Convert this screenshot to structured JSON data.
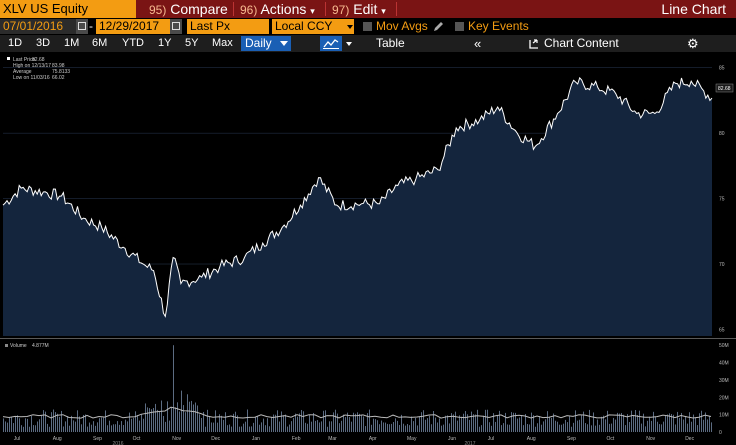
{
  "toolbar": {
    "ticker": "XLV US Equity",
    "compare_num": "95)",
    "compare_label": "Compare",
    "actions_num": "96)",
    "actions_label": "Actions",
    "edit_num": "97)",
    "edit_label": "Edit",
    "chart_title": "Line Chart"
  },
  "settings": {
    "start_date": "07/01/2016",
    "end_date": "12/29/2017",
    "field": "Last Px",
    "currency": "Local CCY",
    "mov_avgs": "Mov Avgs",
    "key_events": "Key Events"
  },
  "ranges": {
    "items": [
      "1D",
      "3D",
      "1M",
      "6M",
      "YTD",
      "1Y",
      "5Y",
      "Max"
    ],
    "frequency": "Daily",
    "table": "Table",
    "chart_content": "Chart Content"
  },
  "legend": {
    "last_price": "Last Price",
    "last_price_val": "82.68",
    "high": "High on 12/13/17",
    "high_val": "83.98",
    "average": "Average",
    "average_val": "75.8133",
    "low": "Low on 11/03/16",
    "low_val": "66.02",
    "volume": "Volume",
    "volume_val": "4.877M",
    "price_tag": "82.68"
  },
  "chart_data": {
    "type": "line",
    "price": {
      "y_ticks": [
        "85",
        "80",
        "75",
        "70",
        "65"
      ],
      "ylim": [
        64.5,
        86.2
      ],
      "x": [
        "2016-07-01",
        "2016-07-15",
        "2016-08-01",
        "2016-08-15",
        "2016-09-01",
        "2016-09-15",
        "2016-10-03",
        "2016-10-17",
        "2016-10-25",
        "2016-11-03",
        "2016-11-09",
        "2016-11-15",
        "2016-12-01",
        "2016-12-15",
        "2017-01-03",
        "2017-01-17",
        "2017-02-01",
        "2017-02-15",
        "2017-03-01",
        "2017-03-15",
        "2017-04-03",
        "2017-04-17",
        "2017-05-01",
        "2017-05-15",
        "2017-06-01",
        "2017-06-15",
        "2017-07-03",
        "2017-07-17",
        "2017-08-01",
        "2017-08-15",
        "2017-09-01",
        "2017-09-15",
        "2017-10-02",
        "2017-10-16",
        "2017-11-01",
        "2017-11-15",
        "2017-12-01",
        "2017-12-13",
        "2017-12-29"
      ],
      "y": [
        74.5,
        75.8,
        75.5,
        75.2,
        73.5,
        72.8,
        71.2,
        70.0,
        69.5,
        66.0,
        70.5,
        68.5,
        69.0,
        69.8,
        70.5,
        71.6,
        72.8,
        74.5,
        76.6,
        74.5,
        74.6,
        74.6,
        76.0,
        76.5,
        77.2,
        80.4,
        81.0,
        82.0,
        80.0,
        79.0,
        81.5,
        83.9,
        83.5,
        83.0,
        81.5,
        81.5,
        83.8,
        83.98,
        82.68
      ]
    },
    "volume": {
      "y_ticks": [
        "50M",
        "40M",
        "30M",
        "20M",
        "10M",
        "0"
      ],
      "ylim": [
        0,
        53
      ],
      "average_level": 9,
      "spike_date": "2016-11-09",
      "spike_value": 50
    },
    "x_tick_labels": [
      "Jul",
      "Aug",
      "Sep",
      "Oct",
      "Nov",
      "Dec",
      "Jan",
      "Feb",
      "Mar",
      "Apr",
      "May",
      "Jun",
      "Jul",
      "Aug",
      "Sep",
      "Oct",
      "Nov",
      "Dec"
    ],
    "year_labels": [
      "2016",
      "2017"
    ]
  },
  "colors": {
    "toolbar_bg": "#7a1414",
    "accent": "#f39c12",
    "chart_fill": "#14253d",
    "line": "#ffffff"
  }
}
